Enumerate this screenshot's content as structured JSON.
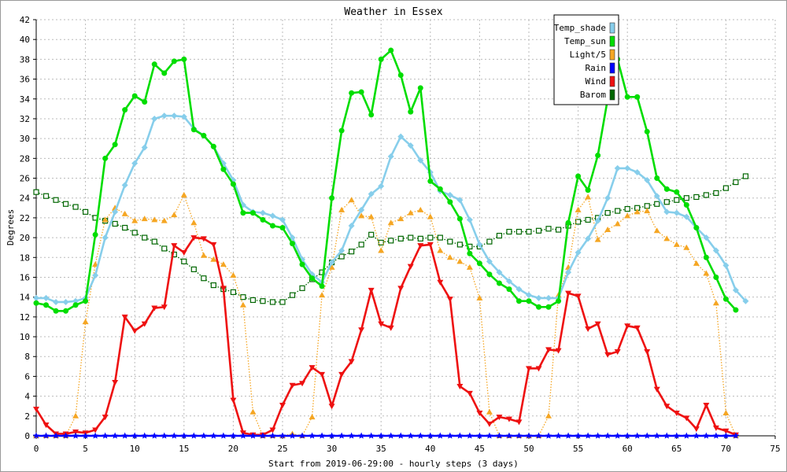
{
  "chart_data": {
    "type": "line",
    "title": "Weather in Essex",
    "xlabel": "Start from 2019-06-29:00 - hourly steps (3 days)",
    "ylabel": "Degrees",
    "xlim": [
      0,
      75
    ],
    "ylim": [
      0,
      42
    ],
    "xticks": [
      0,
      5,
      10,
      15,
      20,
      25,
      30,
      35,
      40,
      45,
      50,
      55,
      60,
      65,
      70,
      75
    ],
    "yticks": [
      0,
      2,
      4,
      6,
      8,
      10,
      12,
      14,
      16,
      18,
      20,
      22,
      24,
      26,
      28,
      30,
      32,
      34,
      36,
      38,
      40,
      42
    ],
    "grid": true,
    "legend_position": "top-right",
    "series": [
      {
        "name": "Temp_shade",
        "color": "#87ceeb",
        "marker": "diamond",
        "line": "solid",
        "values": [
          13.9,
          13.9,
          13.5,
          13.5,
          13.6,
          13.9,
          16.2,
          20.0,
          22.6,
          25.3,
          27.5,
          29.1,
          32.0,
          32.3,
          32.3,
          32.2,
          31.0,
          30.3,
          29.2,
          27.5,
          25.8,
          23.3,
          22.6,
          22.5,
          22.2,
          21.8,
          20.0,
          17.8,
          16.3,
          15.5,
          17.5,
          18.7,
          21.2,
          22.8,
          24.4,
          25.2,
          28.2,
          30.2,
          29.3,
          27.8,
          26.6,
          24.7,
          24.3,
          23.8,
          21.8,
          19.3,
          17.6,
          16.5,
          15.6,
          14.8,
          14.2,
          13.9,
          13.9,
          13.9,
          16.5,
          18.5,
          19.9,
          21.7,
          24.0,
          27.0,
          27.0,
          26.6,
          25.8,
          24.2,
          22.6,
          22.5,
          22.1,
          21.0,
          20.0,
          18.7,
          17.2,
          14.7,
          13.6
        ]
      },
      {
        "name": "Temp_sun",
        "color": "#00dd00",
        "marker": "circle",
        "line": "solid",
        "values": [
          13.4,
          13.2,
          12.6,
          12.6,
          13.2,
          13.6,
          20.3,
          28.0,
          29.4,
          32.9,
          34.3,
          33.7,
          37.5,
          36.6,
          37.8,
          38.0,
          30.9,
          30.3,
          29.2,
          26.9,
          25.4,
          22.5,
          22.5,
          21.8,
          21.2,
          21.0,
          19.4,
          17.3,
          15.9,
          15.1,
          24.0,
          30.8,
          34.6,
          34.7,
          32.4,
          38.0,
          38.9,
          36.4,
          32.7,
          35.1,
          25.7,
          24.9,
          23.6,
          21.9,
          18.4,
          17.4,
          16.3,
          15.4,
          14.8,
          13.6,
          13.6,
          13.0,
          13.0,
          13.6,
          21.5,
          26.2,
          24.8,
          28.3,
          34.0,
          38.0,
          34.2,
          34.2,
          30.7,
          26.0,
          24.9,
          24.6,
          23.3,
          21.0,
          18.0,
          16.0,
          13.8,
          12.7
        ]
      },
      {
        "name": "Light/5",
        "color": "#f5a623",
        "marker": "triangle",
        "line": "dotted",
        "values": [
          0,
          0,
          0,
          0,
          2.0,
          11.5,
          17.3,
          21.8,
          23.0,
          22.4,
          21.7,
          21.9,
          21.8,
          21.7,
          22.3,
          24.3,
          21.5,
          18.2,
          17.8,
          17.3,
          16.2,
          13.2,
          2.4,
          0,
          0,
          0,
          0.2,
          0,
          1.9,
          14.2,
          17.0,
          22.8,
          23.8,
          22.2,
          22.1,
          18.7,
          21.5,
          21.9,
          22.5,
          22.8,
          22.1,
          18.7,
          18.0,
          17.6,
          17.0,
          13.9,
          2.4,
          0,
          0,
          0,
          0,
          0,
          2.0,
          14.2,
          17.0,
          22.8,
          24.1,
          19.8,
          20.8,
          21.4,
          22.2,
          22.6,
          22.7,
          20.7,
          19.9,
          19.3,
          19.0,
          17.4,
          16.4,
          13.4,
          2.3,
          0
        ]
      },
      {
        "name": "Rain",
        "color": "#0000ff",
        "marker": "star",
        "line": "solid",
        "values": [
          0,
          0,
          0,
          0,
          0,
          0,
          0,
          0,
          0,
          0,
          0,
          0,
          0,
          0,
          0,
          0,
          0,
          0,
          0,
          0,
          0,
          0,
          0,
          0,
          0,
          0,
          0,
          0,
          0,
          0,
          0,
          0,
          0,
          0,
          0,
          0,
          0,
          0,
          0,
          0,
          0,
          0,
          0,
          0,
          0,
          0,
          0,
          0,
          0,
          0,
          0,
          0,
          0,
          0,
          0,
          0,
          0,
          0,
          0,
          0,
          0,
          0,
          0,
          0,
          0,
          0,
          0,
          0,
          0,
          0,
          0,
          0
        ]
      },
      {
        "name": "Wind",
        "color": "#ee1111",
        "marker": "triangle-down",
        "line": "solid",
        "values": [
          2.7,
          1.1,
          0.2,
          0.2,
          0.4,
          0.3,
          0.6,
          1.9,
          5.4,
          12.0,
          10.6,
          11.3,
          12.9,
          13.0,
          19.2,
          18.5,
          20.0,
          19.9,
          19.3,
          14.9,
          3.6,
          0.3,
          0.1,
          0.1,
          0.6,
          3.1,
          5.1,
          5.3,
          6.9,
          6.2,
          3.0,
          6.2,
          7.5,
          10.7,
          14.7,
          11.3,
          10.9,
          14.9,
          17.1,
          19.2,
          19.3,
          15.5,
          13.8,
          5.0,
          4.3,
          2.3,
          1.2,
          1.9,
          1.7,
          1.4,
          6.8,
          6.8,
          8.7,
          8.6,
          14.4,
          14.1,
          10.8,
          11.3,
          8.2,
          8.5,
          11.1,
          10.9,
          8.5,
          4.7,
          3.0,
          2.3,
          1.8,
          0.7,
          3.1,
          0.8,
          0.5,
          0.1
        ]
      },
      {
        "name": "Barom",
        "color": "#006600",
        "marker": "square",
        "line": "dotted",
        "values": [
          24.6,
          24.2,
          23.8,
          23.4,
          23.1,
          22.6,
          22.0,
          21.7,
          21.4,
          21.0,
          20.5,
          20.0,
          19.6,
          18.9,
          18.3,
          17.6,
          16.8,
          15.9,
          15.2,
          14.8,
          14.5,
          14.0,
          13.7,
          13.6,
          13.5,
          13.5,
          14.2,
          14.9,
          15.8,
          16.5,
          17.5,
          18.1,
          18.6,
          19.3,
          20.3,
          19.5,
          19.7,
          19.9,
          20.0,
          19.9,
          20.0,
          20.0,
          19.6,
          19.3,
          19.1,
          19.1,
          19.6,
          20.2,
          20.6,
          20.6,
          20.6,
          20.7,
          20.9,
          20.8,
          21.2,
          21.6,
          21.8,
          22.0,
          22.5,
          22.7,
          22.9,
          23.0,
          23.2,
          23.4,
          23.6,
          23.8,
          24.0,
          24.1,
          24.3,
          24.5,
          25.0,
          25.6,
          26.2
        ]
      }
    ]
  }
}
